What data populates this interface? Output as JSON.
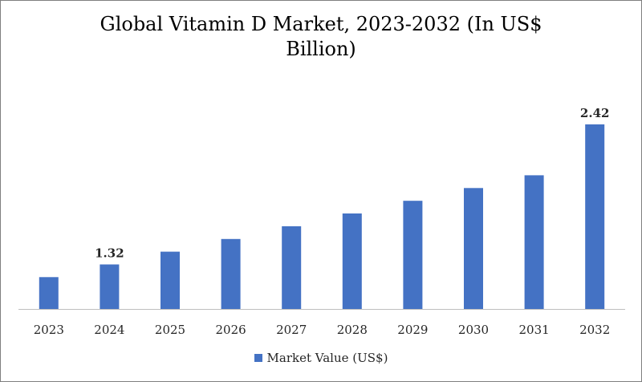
{
  "chart_data": {
    "type": "bar",
    "title_line1": "Global Vitamin D Market, 2023-2032 (In US$",
    "title_line2": "Billion)",
    "categories": [
      "2023",
      "2024",
      "2025",
      "2026",
      "2027",
      "2028",
      "2029",
      "2030",
      "2031",
      "2032"
    ],
    "series": [
      {
        "name": "Market Value (US$)",
        "color": "#4472c4",
        "values": [
          1.22,
          1.32,
          1.42,
          1.52,
          1.62,
          1.72,
          1.82,
          1.92,
          2.02,
          2.42
        ]
      }
    ],
    "data_labels": [
      {
        "index": 1,
        "text": "1.32"
      },
      {
        "index": 9,
        "text": "2.42"
      }
    ],
    "ylim": [
      0.97,
      2.42
    ],
    "grid": false,
    "legend_position": "bottom",
    "xlabel": "",
    "ylabel": ""
  }
}
